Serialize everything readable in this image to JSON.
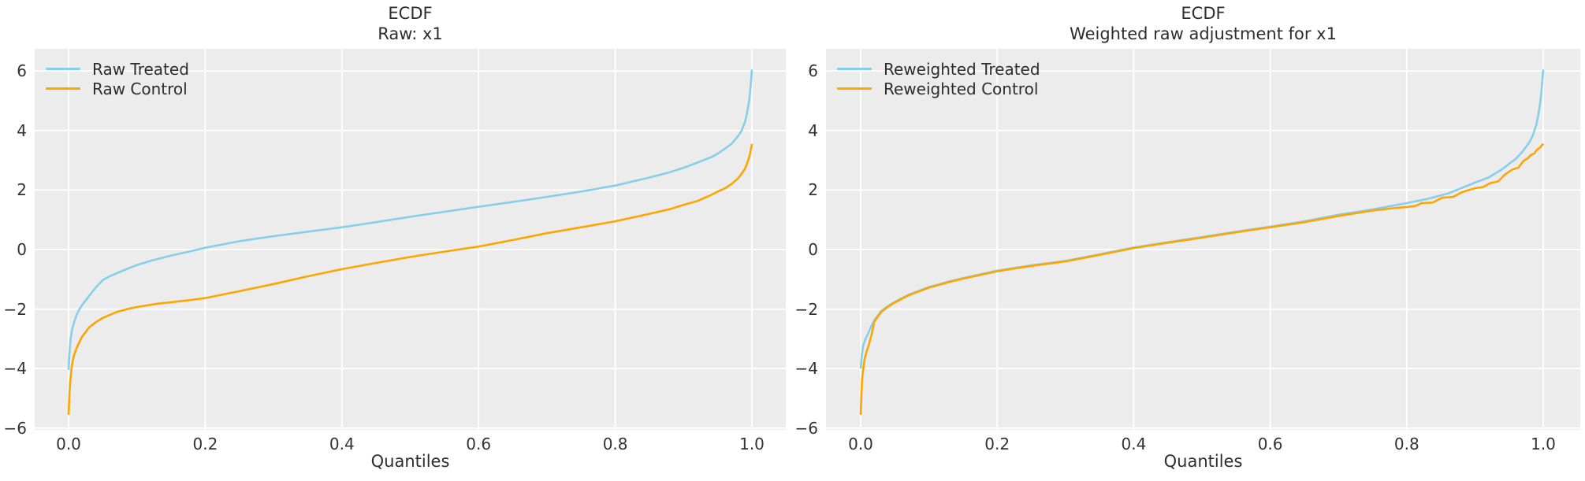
{
  "colors": {
    "treated": "#87CEEB",
    "control": "#FFA500",
    "axes_background": "#ececec",
    "gridline": "#ffffff",
    "text": "#2d2d2d",
    "tick_text": "#333333",
    "figure_background": "#ffffff"
  },
  "charts": [
    {
      "title_line1": "ECDF",
      "title_line2": "Raw: x1",
      "xlabel": "Quantiles",
      "legend": [
        {
          "label": "Raw Treated",
          "color": "#87CEEB"
        },
        {
          "label": "Raw Control",
          "color": "#FFA500"
        }
      ],
      "x_tick_labels": [
        "0.0",
        "0.2",
        "0.4",
        "0.6",
        "0.8",
        "1.0"
      ],
      "y_tick_labels": [
        "6",
        "4",
        "2",
        "0",
        "−2",
        "−4",
        "−6"
      ]
    },
    {
      "title_line1": "ECDF",
      "title_line2": "Weighted raw adjustment for x1",
      "xlabel": "Quantiles",
      "legend": [
        {
          "label": "Reweighted Treated",
          "color": "#87CEEB"
        },
        {
          "label": "Reweighted Control",
          "color": "#FFA500"
        }
      ],
      "x_tick_labels": [
        "0.0",
        "0.2",
        "0.4",
        "0.6",
        "0.8",
        "1.0"
      ],
      "y_tick_labels": [
        "6",
        "4",
        "2",
        "0",
        "−2",
        "−4",
        "−6"
      ]
    }
  ],
  "chart_data": [
    {
      "type": "line",
      "title": "ECDF — Raw: x1",
      "xlabel": "Quantiles",
      "ylabel": "",
      "xlim": [
        -0.05,
        1.05
      ],
      "ylim": [
        -6.1,
        6.75
      ],
      "x_ticks": [
        0.0,
        0.2,
        0.4,
        0.6,
        0.8,
        1.0
      ],
      "y_ticks": [
        6,
        4,
        2,
        0,
        -2,
        -4,
        -6
      ],
      "grid": true,
      "legend_position": "upper left",
      "series": [
        {
          "name": "Raw Treated",
          "color": "#87CEEB",
          "points": [
            [
              0,
              -4.05
            ],
            [
              0.001,
              -3.55
            ],
            [
              0.003,
              -3.0
            ],
            [
              0.005,
              -2.72
            ],
            [
              0.008,
              -2.45
            ],
            [
              0.012,
              -2.18
            ],
            [
              0.016,
              -2.0
            ],
            [
              0.02,
              -1.86
            ],
            [
              0.03,
              -1.56
            ],
            [
              0.04,
              -1.27
            ],
            [
              0.05,
              -1.03
            ],
            [
              0.06,
              -0.9
            ],
            [
              0.08,
              -0.7
            ],
            [
              0.1,
              -0.52
            ],
            [
              0.12,
              -0.38
            ],
            [
              0.15,
              -0.2
            ],
            [
              0.18,
              -0.05
            ],
            [
              0.2,
              0.06
            ],
            [
              0.25,
              0.28
            ],
            [
              0.3,
              0.45
            ],
            [
              0.35,
              0.6
            ],
            [
              0.4,
              0.75
            ],
            [
              0.45,
              0.92
            ],
            [
              0.5,
              1.1
            ],
            [
              0.55,
              1.27
            ],
            [
              0.6,
              1.44
            ],
            [
              0.65,
              1.6
            ],
            [
              0.7,
              1.77
            ],
            [
              0.75,
              1.95
            ],
            [
              0.8,
              2.15
            ],
            [
              0.85,
              2.42
            ],
            [
              0.88,
              2.6
            ],
            [
              0.9,
              2.75
            ],
            [
              0.92,
              2.92
            ],
            [
              0.94,
              3.1
            ],
            [
              0.95,
              3.22
            ],
            [
              0.96,
              3.38
            ],
            [
              0.97,
              3.55
            ],
            [
              0.98,
              3.82
            ],
            [
              0.985,
              4.0
            ],
            [
              0.99,
              4.3
            ],
            [
              0.993,
              4.6
            ],
            [
              0.996,
              5.0
            ],
            [
              0.998,
              5.45
            ],
            [
              1,
              6.05
            ]
          ]
        },
        {
          "name": "Raw Control",
          "color": "#FFA500",
          "points": [
            [
              0,
              -5.55
            ],
            [
              0.001,
              -5.0
            ],
            [
              0.002,
              -4.55
            ],
            [
              0.004,
              -4.05
            ],
            [
              0.006,
              -3.75
            ],
            [
              0.008,
              -3.55
            ],
            [
              0.012,
              -3.3
            ],
            [
              0.016,
              -3.1
            ],
            [
              0.02,
              -2.92
            ],
            [
              0.03,
              -2.62
            ],
            [
              0.04,
              -2.44
            ],
            [
              0.05,
              -2.3
            ],
            [
              0.07,
              -2.1
            ],
            [
              0.09,
              -1.98
            ],
            [
              0.1,
              -1.93
            ],
            [
              0.13,
              -1.82
            ],
            [
              0.15,
              -1.77
            ],
            [
              0.18,
              -1.69
            ],
            [
              0.2,
              -1.63
            ],
            [
              0.25,
              -1.4
            ],
            [
              0.3,
              -1.16
            ],
            [
              0.35,
              -0.9
            ],
            [
              0.4,
              -0.66
            ],
            [
              0.45,
              -0.45
            ],
            [
              0.5,
              -0.25
            ],
            [
              0.55,
              -0.07
            ],
            [
              0.6,
              0.1
            ],
            [
              0.65,
              0.32
            ],
            [
              0.7,
              0.55
            ],
            [
              0.75,
              0.75
            ],
            [
              0.8,
              0.95
            ],
            [
              0.85,
              1.2
            ],
            [
              0.88,
              1.36
            ],
            [
              0.9,
              1.5
            ],
            [
              0.92,
              1.63
            ],
            [
              0.94,
              1.83
            ],
            [
              0.95,
              1.95
            ],
            [
              0.96,
              2.05
            ],
            [
              0.97,
              2.2
            ],
            [
              0.98,
              2.4
            ],
            [
              0.985,
              2.55
            ],
            [
              0.99,
              2.72
            ],
            [
              0.993,
              2.9
            ],
            [
              0.996,
              3.1
            ],
            [
              0.998,
              3.3
            ],
            [
              1,
              3.55
            ]
          ]
        }
      ]
    },
    {
      "type": "line",
      "title": "ECDF — Weighted raw adjustment for x1",
      "xlabel": "Quantiles",
      "ylabel": "",
      "xlim": [
        -0.05,
        1.05
      ],
      "ylim": [
        -6.1,
        6.75
      ],
      "x_ticks": [
        0.0,
        0.2,
        0.4,
        0.6,
        0.8,
        1.0
      ],
      "y_ticks": [
        6,
        4,
        2,
        0,
        -2,
        -4,
        -6
      ],
      "grid": true,
      "legend_position": "upper left",
      "series": [
        {
          "name": "Reweighted Treated",
          "color": "#87CEEB",
          "points": [
            [
              0,
              -4.0
            ],
            [
              0.002,
              -3.5
            ],
            [
              0.004,
              -3.2
            ],
            [
              0.007,
              -3.0
            ],
            [
              0.01,
              -2.87
            ],
            [
              0.015,
              -2.6
            ],
            [
              0.02,
              -2.38
            ],
            [
              0.03,
              -2.07
            ],
            [
              0.04,
              -1.9
            ],
            [
              0.05,
              -1.76
            ],
            [
              0.07,
              -1.52
            ],
            [
              0.1,
              -1.26
            ],
            [
              0.13,
              -1.07
            ],
            [
              0.15,
              -0.96
            ],
            [
              0.2,
              -0.71
            ],
            [
              0.25,
              -0.53
            ],
            [
              0.3,
              -0.38
            ],
            [
              0.35,
              -0.16
            ],
            [
              0.4,
              0.07
            ],
            [
              0.45,
              0.25
            ],
            [
              0.5,
              0.42
            ],
            [
              0.55,
              0.6
            ],
            [
              0.6,
              0.77
            ],
            [
              0.65,
              0.95
            ],
            [
              0.7,
              1.17
            ],
            [
              0.75,
              1.35
            ],
            [
              0.8,
              1.56
            ],
            [
              0.83,
              1.7
            ],
            [
              0.86,
              1.88
            ],
            [
              0.9,
              2.25
            ],
            [
              0.92,
              2.42
            ],
            [
              0.94,
              2.7
            ],
            [
              0.95,
              2.88
            ],
            [
              0.96,
              3.05
            ],
            [
              0.97,
              3.3
            ],
            [
              0.98,
              3.62
            ],
            [
              0.985,
              3.85
            ],
            [
              0.99,
              4.2
            ],
            [
              0.993,
              4.55
            ],
            [
              0.996,
              5.0
            ],
            [
              0.998,
              5.5
            ],
            [
              1,
              6.05
            ]
          ]
        },
        {
          "name": "Reweighted Control",
          "color": "#FFA500",
          "points": [
            [
              0,
              -5.55
            ],
            [
              0.001,
              -4.9
            ],
            [
              0.002,
              -4.4
            ],
            [
              0.004,
              -3.95
            ],
            [
              0.006,
              -3.65
            ],
            [
              0.009,
              -3.4
            ],
            [
              0.012,
              -3.2
            ],
            [
              0.016,
              -2.85
            ],
            [
              0.02,
              -2.42
            ],
            [
              0.03,
              -2.1
            ],
            [
              0.04,
              -1.92
            ],
            [
              0.05,
              -1.78
            ],
            [
              0.07,
              -1.54
            ],
            [
              0.1,
              -1.28
            ],
            [
              0.13,
              -1.09
            ],
            [
              0.15,
              -0.98
            ],
            [
              0.2,
              -0.73
            ],
            [
              0.25,
              -0.55
            ],
            [
              0.3,
              -0.4
            ],
            [
              0.35,
              -0.18
            ],
            [
              0.4,
              0.05
            ],
            [
              0.45,
              0.23
            ],
            [
              0.5,
              0.4
            ],
            [
              0.55,
              0.58
            ],
            [
              0.6,
              0.75
            ],
            [
              0.65,
              0.92
            ],
            [
              0.7,
              1.13
            ],
            [
              0.75,
              1.31
            ],
            [
              0.78,
              1.39
            ],
            [
              0.8,
              1.43
            ],
            [
              0.812,
              1.46
            ],
            [
              0.822,
              1.56
            ],
            [
              0.838,
              1.58
            ],
            [
              0.852,
              1.74
            ],
            [
              0.868,
              1.77
            ],
            [
              0.882,
              1.94
            ],
            [
              0.9,
              2.06
            ],
            [
              0.912,
              2.1
            ],
            [
              0.922,
              2.23
            ],
            [
              0.934,
              2.29
            ],
            [
              0.944,
              2.52
            ],
            [
              0.954,
              2.68
            ],
            [
              0.964,
              2.76
            ],
            [
              0.971,
              2.98
            ],
            [
              0.977,
              3.06
            ],
            [
              0.982,
              3.18
            ],
            [
              0.987,
              3.23
            ],
            [
              0.991,
              3.36
            ],
            [
              0.995,
              3.42
            ],
            [
              1,
              3.56
            ]
          ]
        }
      ]
    }
  ]
}
